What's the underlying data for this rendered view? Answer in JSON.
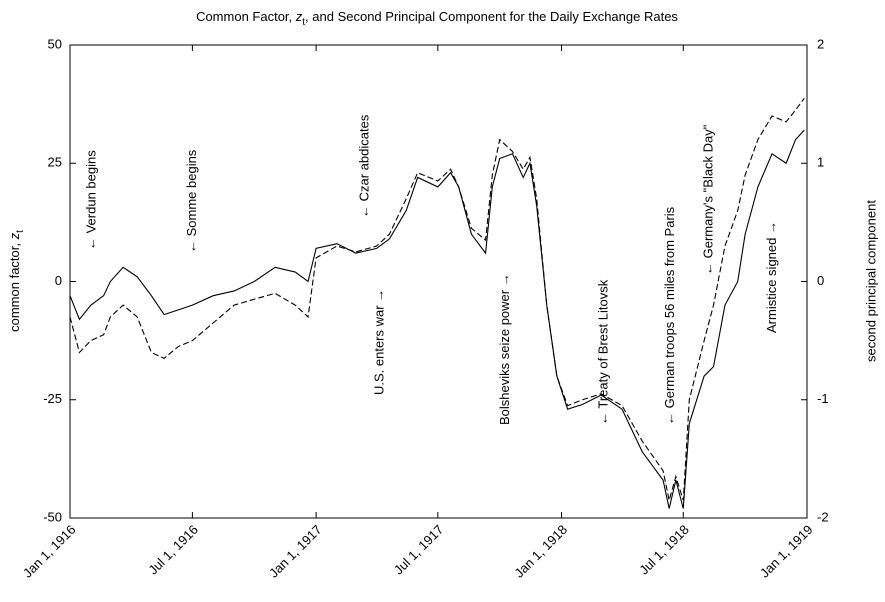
{
  "chart_data": {
    "type": "line",
    "title": [
      "Common Factor, ",
      "z",
      "t",
      ", and Second Principal Component for the Daily Exchange Rates"
    ],
    "ylabel": [
      "common factor, ",
      "z",
      "t"
    ],
    "y2label": "second principal component",
    "x": [
      "1916-01-01",
      "1916-01-15",
      "1916-02-01",
      "1916-02-20",
      "1916-03-01",
      "1916-03-20",
      "1916-04-10",
      "1916-05-01",
      "1916-05-20",
      "1916-06-10",
      "1916-07-01",
      "1916-08-01",
      "1916-09-01",
      "1916-10-01",
      "1916-11-01",
      "1916-12-01",
      "1916-12-20",
      "1917-01-01",
      "1917-02-01",
      "1917-03-01",
      "1917-04-01",
      "1917-04-20",
      "1917-05-15",
      "1917-06-01",
      "1917-07-01",
      "1917-07-20",
      "1917-08-01",
      "1917-08-20",
      "1917-09-10",
      "1917-09-20",
      "1917-10-01",
      "1917-10-20",
      "1917-11-05",
      "1917-11-15",
      "1917-11-25",
      "1917-12-10",
      "1917-12-25",
      "1918-01-10",
      "1918-02-01",
      "1918-03-01",
      "1918-04-01",
      "1918-05-01",
      "1918-06-01",
      "1918-06-10",
      "1918-06-20",
      "1918-07-01",
      "1918-07-10",
      "1918-08-01",
      "1918-08-15",
      "1918-09-01",
      "1918-09-20",
      "1918-10-01",
      "1918-10-20",
      "1918-11-10",
      "1918-12-01",
      "1918-12-15",
      "1918-12-28"
    ],
    "series": [
      {
        "color": "#000000",
        "linestyle": "solid",
        "axis": "y",
        "values": [
          -3,
          -8,
          -5,
          -3,
          0,
          3,
          1,
          -3,
          -7,
          -6,
          -5,
          -3,
          -2,
          0,
          3,
          2,
          0,
          7,
          8,
          6,
          7,
          9,
          15,
          22,
          20,
          23,
          20,
          10,
          6,
          20,
          26,
          27,
          22,
          25,
          16,
          -5,
          -20,
          -27,
          -26,
          -24,
          -27,
          -36,
          -42,
          -48,
          -42,
          -48,
          -30,
          -20,
          -18,
          -5,
          0,
          10,
          20,
          27,
          25,
          30,
          32
        ]
      },
      {
        "color": "#000000",
        "linestyle": "dashed",
        "axis": "y2",
        "values": [
          -0.3,
          -0.6,
          -0.5,
          -0.45,
          -0.3,
          -0.2,
          -0.3,
          -0.6,
          -0.65,
          -0.55,
          -0.5,
          -0.35,
          -0.2,
          -0.15,
          -0.1,
          -0.2,
          -0.3,
          0.2,
          0.3,
          0.25,
          0.3,
          0.4,
          0.7,
          0.92,
          0.85,
          0.95,
          0.8,
          0.45,
          0.35,
          0.9,
          1.2,
          1.1,
          0.95,
          1.05,
          0.7,
          -0.2,
          -0.8,
          -1.05,
          -1.0,
          -0.95,
          -1.05,
          -1.35,
          -1.6,
          -1.85,
          -1.65,
          -1.85,
          -1.0,
          -0.5,
          -0.2,
          0.3,
          0.6,
          0.9,
          1.2,
          1.4,
          1.35,
          1.45,
          1.55
        ]
      }
    ],
    "xlim": [
      "1916-01-01",
      "1919-01-01"
    ],
    "xticks": [
      {
        "value": "1916-01-01",
        "label": "Jan 1, 1916"
      },
      {
        "value": "1916-07-01",
        "label": "Jul 1, 1916"
      },
      {
        "value": "1917-01-01",
        "label": "Jan 1, 1917"
      },
      {
        "value": "1917-07-01",
        "label": "Jul 1, 1917"
      },
      {
        "value": "1918-01-01",
        "label": "Jan 1, 1918"
      },
      {
        "value": "1918-07-01",
        "label": "Jul 1, 1918"
      },
      {
        "value": "1919-01-01",
        "label": "Jan 1, 1919"
      }
    ],
    "ylim": [
      -50,
      50
    ],
    "yticks": [
      -50,
      -25,
      0,
      25,
      50
    ],
    "y2lim": [
      -2,
      2
    ],
    "y2ticks": [
      -2,
      -1,
      0,
      1,
      2
    ],
    "grid": false,
    "annotations": [
      {
        "text": "← Verdun begins",
        "x": "1916-02-03"
      },
      {
        "text": "← Somme begins",
        "x": "1916-07-01"
      },
      {
        "text": "← Czar abdicates",
        "x": "1917-03-15"
      },
      {
        "text": "U.S. enters war →",
        "x": "1917-04-06"
      },
      {
        "text": "Bolsheviks seize power →",
        "x": "1917-10-10"
      },
      {
        "text": "← Treaty of Brest Litovsk",
        "x": "1918-03-05"
      },
      {
        "text": "← German troops 56 miles from Paris",
        "x": "1918-06-12"
      },
      {
        "text": "← Germany's \"Black Day\"",
        "x": "1918-08-08"
      },
      {
        "text": "Armistice signed →",
        "x": "1918-11-11"
      }
    ]
  }
}
